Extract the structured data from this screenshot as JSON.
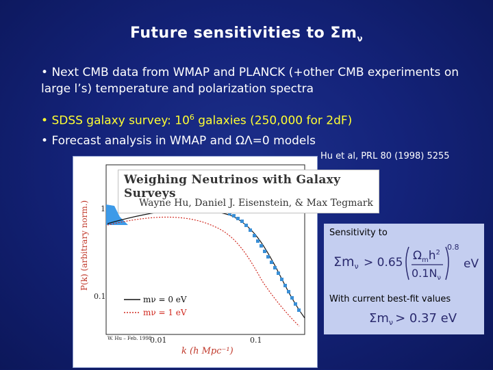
{
  "slide": {
    "title": "Future sensitivities to Σm",
    "title_subscript": "ν",
    "bullets": {
      "b1_marker": "•",
      "b1": "Next CMB data from WMAP and PLANCK (+other CMB experiments on large l’s) temperature and polarization spectra",
      "b2_marker": "•",
      "b2_pre": "SDSS galaxy survey: 10",
      "b2_sup": "6",
      "b2_post": " galaxies (250,000 for 2dF)",
      "b3_marker": "•",
      "b3": "Forecast analysis in WMAP and ΩΛ=0 models"
    },
    "citation": "Hu et al, PRL 80 (1998) 5255"
  },
  "figure": {
    "heading": "Weighing Neutrinos with Galaxy Surveys",
    "authors": "Wayne Hu, Daniel J. Eisenstein, & Max Tegmark",
    "y_axis_label": "P(k)   (arbitrary norm.)",
    "y_tick_1": "1",
    "y_tick_01": "0.1",
    "x_tick_001": "0.01",
    "x_tick_01": "0.1",
    "x_axis_label": "k (h Mpc⁻¹)",
    "credit": "W. Hu – Feb. 1998",
    "legend": [
      {
        "label": "mν = 0 eV"
      },
      {
        "label": "mν = 1 eV"
      }
    ]
  },
  "sensitivity_box": {
    "label": "Sensitivity to",
    "formula_lhs": "Σm",
    "formula_lhs_sub": "ν",
    "formula_op": "> 0.65",
    "formula_num": "Ω",
    "formula_num_sub": "m",
    "formula_num_tail": "h",
    "formula_num_sup": "2",
    "formula_den": "0.1N",
    "formula_den_sub": "ν",
    "formula_exp": "0.8",
    "formula_unit": "eV",
    "current_label": "With current best-fit values",
    "current_lhs": "Σm",
    "current_lhs_sub": "ν",
    "current_rhs": "> 0.37 eV"
  },
  "colors": {
    "background": "#14237a",
    "highlight": "#ffff33",
    "data_points": "#3a8fd6",
    "box_bg": "#c4cef0"
  }
}
